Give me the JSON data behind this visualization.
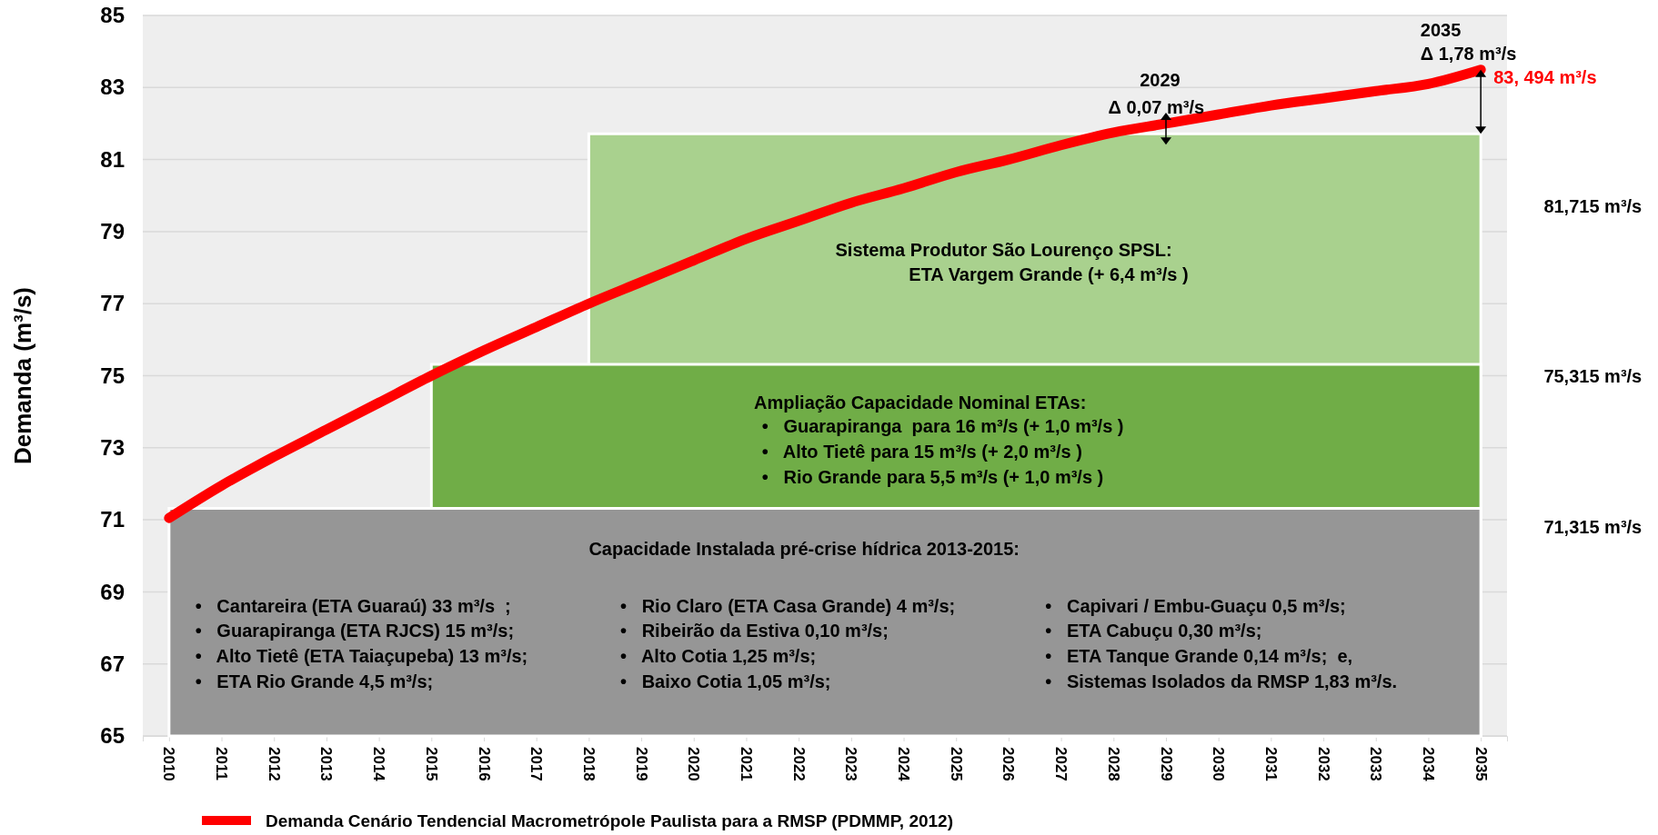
{
  "chart_data": {
    "type": "line",
    "ylabel": "Demanda (m³/s)",
    "xlim": [
      2009.5,
      2035.5
    ],
    "xticks": [
      2010,
      2011,
      2012,
      2013,
      2014,
      2015,
      2016,
      2017,
      2018,
      2019,
      2020,
      2021,
      2022,
      2023,
      2024,
      2025,
      2026,
      2027,
      2028,
      2029,
      2030,
      2031,
      2032,
      2033,
      2034,
      2035
    ],
    "ylim": [
      65,
      85
    ],
    "yticks": [
      65,
      67,
      69,
      71,
      73,
      75,
      77,
      79,
      81,
      83,
      85
    ],
    "grid": "y",
    "legend": "bottom",
    "series": [
      {
        "type": "area",
        "color": "#a9d18e",
        "x": [
          2018,
          2035
        ],
        "values": [
          81.715,
          81.715
        ]
      },
      {
        "type": "area",
        "color": "#70ad47",
        "x": [
          2015,
          2035
        ],
        "values": [
          75.315,
          75.315
        ]
      },
      {
        "type": "area",
        "color": "#969696",
        "x": [
          2010,
          2035
        ],
        "values": [
          71.315,
          71.315
        ]
      },
      {
        "name": "Demanda Cenário Tendencial Macrometrópole Paulista para a RMSP (PDMMP, 2012)",
        "color": "#ff0000",
        "x": [
          2010,
          2011,
          2012,
          2013,
          2014,
          2015,
          2016,
          2017,
          2018,
          2019,
          2020,
          2021,
          2022,
          2023,
          2024,
          2025,
          2026,
          2027,
          2028,
          2029,
          2030,
          2031,
          2032,
          2033,
          2034,
          2035
        ],
        "values": [
          71.05,
          71.95,
          72.75,
          73.5,
          74.25,
          75.0,
          75.7,
          76.35,
          77.0,
          77.6,
          78.2,
          78.8,
          79.3,
          79.8,
          80.2,
          80.65,
          81.0,
          81.4,
          81.75,
          82.0,
          82.25,
          82.5,
          82.7,
          82.9,
          83.1,
          83.494
        ],
        "value_labels": [
          null,
          null,
          null,
          null,
          null,
          null,
          null,
          null,
          null,
          null,
          null,
          null,
          null,
          null,
          null,
          null,
          null,
          null,
          null,
          null,
          null,
          null,
          null,
          null,
          null,
          "83, 494 m³/s"
        ]
      }
    ],
    "annotations": [
      "2029",
      "Δ 0,07 m³/s",
      "2035",
      "Δ 1,78 m³/s",
      "Sistema Produtor São Lourenço SPSL:",
      "ETA Vargem Grande (+ 6,4 m³/s )",
      "Ampliação Capacidade Nominal ETAs:",
      "•   Guarapiranga  para 16 m³/s (+ 1,0 m³/s )",
      "•   Alto Tietê para 15 m³/s (+ 2,0 m³/s )",
      "•   Rio Grande para 5,5 m³/s (+ 1,0 m³/s )",
      "Capacidade Instalada pré-crise hídrica 2013-2015:",
      "•   Cantareira (ETA Guaraú) 33 m³/s  ;",
      "•   Guarapiranga (ETA RJCS) 15 m³/s;",
      "•   Alto Tietê (ETA Taiaçupeba) 13 m³/s;",
      "•   ETA Rio Grande 4,5 m³/s;",
      "•   Rio Claro (ETA Casa Grande) 4 m³/s;",
      "•   Ribeirão da Estiva 0,10 m³/s;",
      "•   Alto Cotia 1,25 m³/s;",
      "•   Baixo Cotia 1,05 m³/s;",
      "•   Capivari / Embu-Guaçu 0,5 m³/s;",
      "•   ETA Cabuçu 0,30 m³/s;",
      "•   ETA Tanque Grande 0,14 m³/s;  e,",
      "•   Sistemas Isolados da RMSP 1,83 m³/s.",
      "81,715 m³/s",
      "75,315 m³/s",
      "71,315 m³/s"
    ]
  }
}
